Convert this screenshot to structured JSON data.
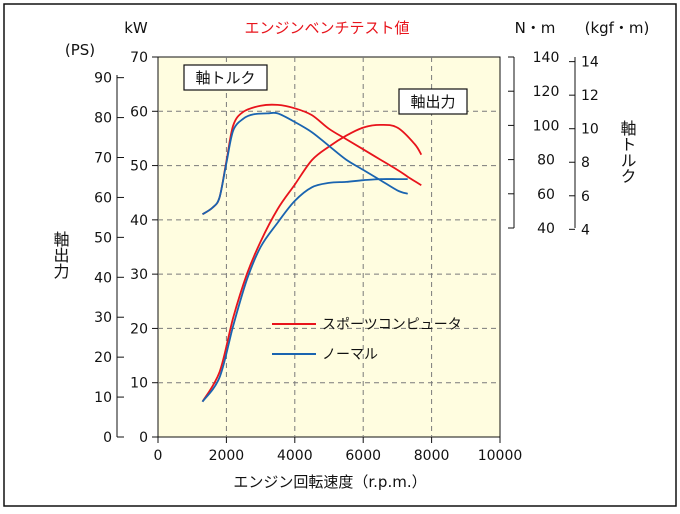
{
  "colors": {
    "plot_bg": "#fffde0",
    "grid": "#7a7a7a",
    "sports": "#e8141c",
    "normal": "#1a64b0",
    "title": "#e8141c"
  },
  "chart_data": {
    "type": "line",
    "title": "エンジンベンチテスト値",
    "xlabel": "エンジン回転速度（r.p.m.）",
    "xlim": [
      0,
      10000
    ],
    "xticks": [
      "0",
      "2000",
      "4000",
      "6000",
      "8000",
      "10000"
    ],
    "grid": "dashed",
    "axes": {
      "kw": {
        "unit": "kW",
        "ylim": [
          0,
          70
        ],
        "ticks": [
          "0",
          "10",
          "20",
          "30",
          "40",
          "50",
          "60",
          "70"
        ]
      },
      "ps": {
        "unit": "(PS)",
        "ticks": [
          "0",
          "10",
          "20",
          "30",
          "40",
          "50",
          "60",
          "70",
          "80",
          "90"
        ]
      },
      "nm": {
        "unit": "N・m",
        "ticks": [
          "40",
          "60",
          "80",
          "100",
          "120",
          "140"
        ]
      },
      "kgfm": {
        "unit": "(kgf・m)",
        "ticks": [
          "4",
          "6",
          "8",
          "10",
          "12",
          "14"
        ]
      },
      "power_label": "軸出力",
      "torque_label": "軸トルク"
    },
    "callouts": {
      "torque": "軸トルク",
      "power": "軸出力"
    },
    "legend": {
      "position": "lower-right",
      "entries": [
        {
          "label": "スポーツコンピュータ",
          "series": "sports"
        },
        {
          "label": "ノーマル",
          "series": "normal"
        }
      ]
    },
    "series": [
      {
        "id": "sports",
        "name": "スポーツコンピュータ",
        "kind": "power",
        "unit": "kW",
        "x": [
          1300,
          1800,
          2200,
          2600,
          3000,
          3500,
          4000,
          4500,
          5000,
          5500,
          6000,
          6500,
          7000,
          7500,
          7700
        ],
        "y": [
          6.5,
          12,
          22,
          30,
          36,
          42,
          46.5,
          51,
          53.5,
          55.5,
          57,
          57.5,
          57,
          54,
          52
        ]
      },
      {
        "id": "normal",
        "name": "ノーマル",
        "kind": "power",
        "unit": "kW",
        "x": [
          1300,
          1800,
          2200,
          2600,
          3000,
          3500,
          4000,
          4500,
          5000,
          5500,
          6000,
          6500,
          7000,
          7300
        ],
        "y": [
          6.5,
          11,
          20.5,
          29,
          35,
          39.5,
          43.5,
          46,
          46.8,
          47,
          47.3,
          47.5,
          47.5,
          47.5
        ]
      },
      {
        "id": "sports",
        "name": "スポーツコンピュータ",
        "kind": "torque",
        "unit": "N・m",
        "x": [
          1300,
          1600,
          1800,
          2000,
          2200,
          2500,
          3000,
          3500,
          4000,
          4500,
          5000,
          5500,
          6000,
          6500,
          7000,
          7300,
          7700
        ],
        "y": [
          48,
          52,
          58,
          79,
          100,
          108,
          111.5,
          112,
          110,
          106,
          98,
          92,
          86,
          80,
          74,
          70,
          65
        ]
      },
      {
        "id": "normal",
        "name": "ノーマル",
        "kind": "torque",
        "unit": "N・m",
        "x": [
          1300,
          1600,
          1800,
          2000,
          2200,
          2500,
          2800,
          3200,
          3500,
          4000,
          4500,
          5000,
          5500,
          6000,
          6500,
          7000,
          7300
        ],
        "y": [
          48,
          52,
          58,
          78,
          97,
          104,
          106.5,
          107,
          107,
          102,
          96,
          88,
          80,
          74,
          68,
          62,
          60
        ]
      }
    ]
  }
}
